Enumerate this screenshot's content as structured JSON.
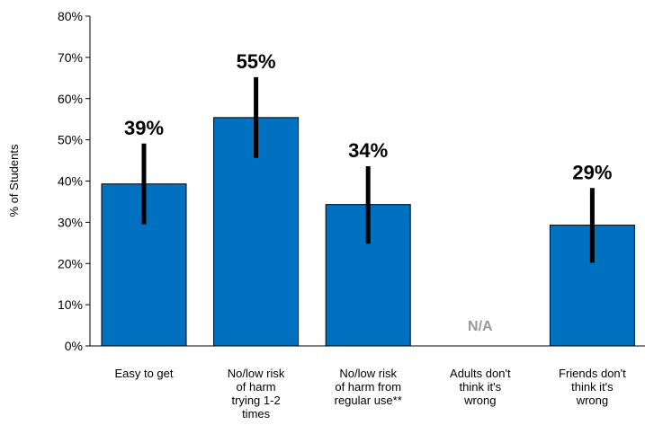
{
  "chart_data": {
    "type": "bar",
    "categories": [
      [
        "Easy to get"
      ],
      [
        "No/low risk",
        "of harm",
        "trying 1-2",
        "times"
      ],
      [
        "No/low risk",
        "of harm from",
        "regular use**"
      ],
      [
        "Adults don't",
        "think it's",
        "wrong"
      ],
      [
        "Friends don't",
        "think it's",
        "wrong"
      ]
    ],
    "values": [
      39.3,
      55.4,
      34.3,
      null,
      29.3
    ],
    "error_low": [
      29.5,
      45.6,
      24.8,
      null,
      20.2
    ],
    "error_high": [
      49.1,
      65.2,
      43.6,
      null,
      38.3
    ],
    "value_labels": [
      "39%",
      "55%",
      "34%",
      "N/A",
      "29%"
    ],
    "ylabel": "% of Students",
    "ylim": [
      0,
      80
    ],
    "yticks": [
      "0%",
      "10%",
      "20%",
      "30%",
      "40%",
      "50%",
      "60%",
      "70%",
      "80%"
    ],
    "bar_color": "#0070C0",
    "error_color": "#000000",
    "na_color": "#999999",
    "grid": false
  }
}
